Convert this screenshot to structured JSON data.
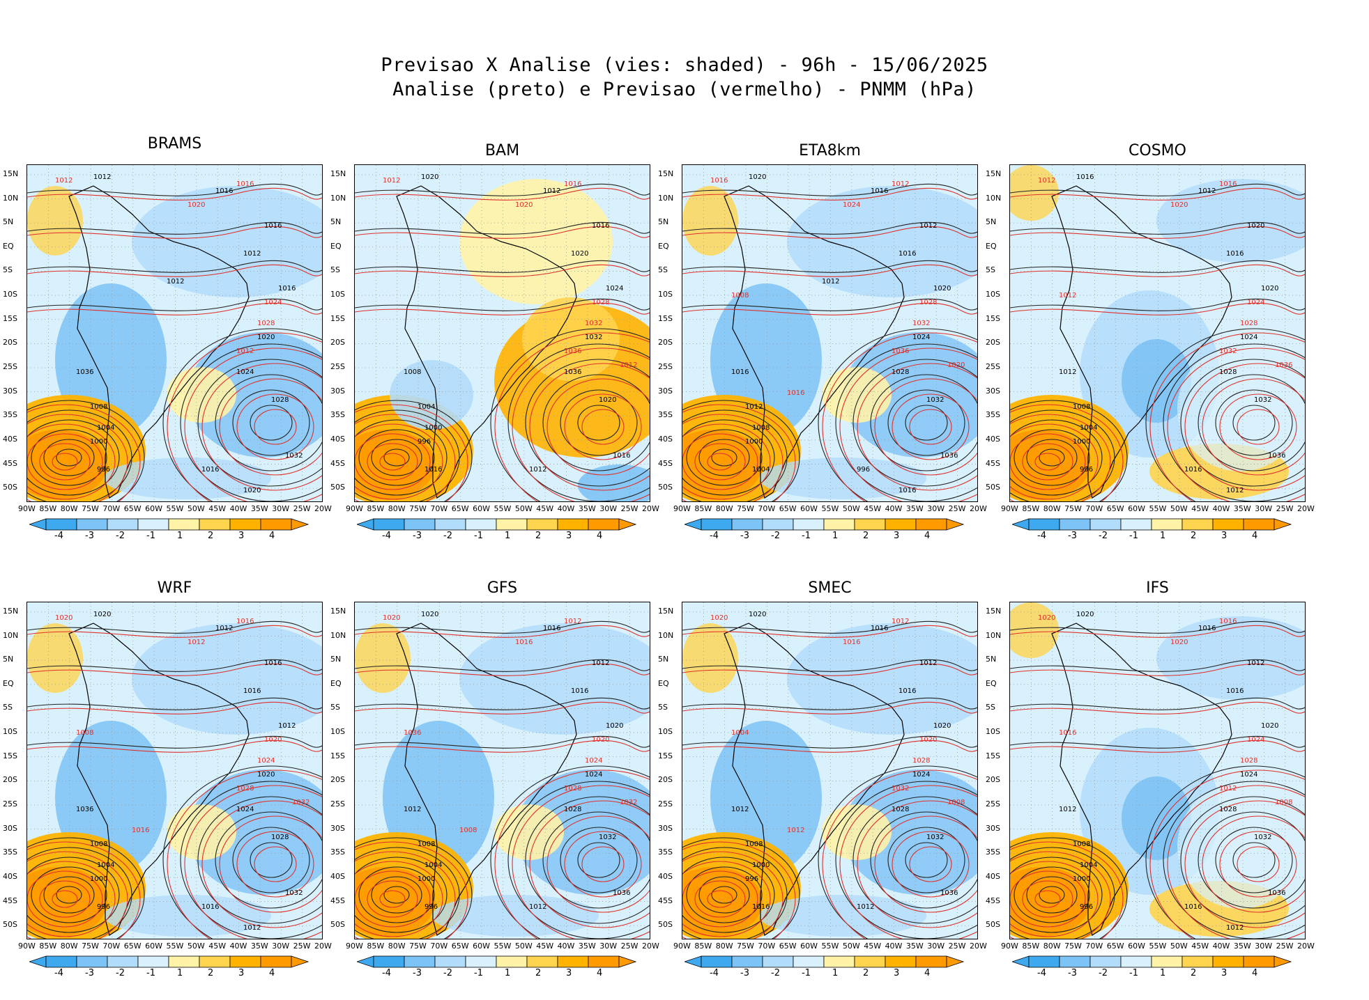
{
  "title_line1": "Previsao X Analise (vies: shaded) - 96h - 15/06/2025",
  "title_line2": "Analise (preto) e Previsao (vermelho) - PNMM (hPa)",
  "lat_labels": [
    "15N",
    "10N",
    "5N",
    "EQ",
    "5S",
    "10S",
    "15S",
    "20S",
    "25S",
    "30S",
    "35S",
    "40S",
    "45S",
    "50S"
  ],
  "lon_labels": [
    "90W",
    "85W",
    "80W",
    "75W",
    "70W",
    "65W",
    "60W",
    "55W",
    "50W",
    "45W",
    "40W",
    "35W",
    "30W",
    "25W",
    "20W"
  ],
  "colorbar": {
    "ticks": [
      "-4",
      "-3",
      "-2",
      "-1",
      "1",
      "2",
      "3",
      "4"
    ],
    "colors": [
      "#3fa9f0",
      "#7dc3f5",
      "#b1dcfa",
      "#d9f1fc",
      "#ffffff",
      "#fff3a8",
      "#ffd44f",
      "#ffb300",
      "#ff9a00"
    ]
  },
  "panels": [
    {
      "model": "BRAMS",
      "isobars_analysis": [
        "1012",
        "1016",
        "1016",
        "1012",
        "1016",
        "1020",
        "1024",
        "1028",
        "1032",
        "1036",
        "1008",
        "1004",
        "1000",
        "996",
        "1016",
        "1020",
        "1012"
      ],
      "isobars_forecast": [
        "1012",
        "1016",
        "1020",
        "1024",
        "1028",
        "1012"
      ],
      "bias_pattern": "cold"
    },
    {
      "model": "BAM",
      "isobars_analysis": [
        "1020",
        "1012",
        "1016",
        "1020",
        "1024",
        "1032",
        "1036",
        "1020",
        "1016",
        "1008",
        "1004",
        "1000",
        "996",
        "1016",
        "1012"
      ],
      "isobars_forecast": [
        "1012",
        "1016",
        "1020",
        "1028",
        "1032",
        "1036",
        "1012"
      ],
      "bias_pattern": "warm"
    },
    {
      "model": "ETA8km",
      "isobars_analysis": [
        "1020",
        "1016",
        "1012",
        "1016",
        "1020",
        "1024",
        "1028",
        "1032",
        "1036",
        "1016",
        "1012",
        "1008",
        "1000",
        "1004",
        "996",
        "1016",
        "1012"
      ],
      "isobars_forecast": [
        "1016",
        "1012",
        "1024",
        "1028",
        "1032",
        "1036",
        "1020",
        "1008",
        "1016"
      ],
      "bias_pattern": "cold"
    },
    {
      "model": "COSMO",
      "isobars_analysis": [
        "1016",
        "1012",
        "1020",
        "1016",
        "1020",
        "1024",
        "1028",
        "1032",
        "1036",
        "1012",
        "1008",
        "1004",
        "1000",
        "996",
        "1016",
        "1012"
      ],
      "isobars_forecast": [
        "1012",
        "1016",
        "1020",
        "1024",
        "1028",
        "1032",
        "1036",
        "1012"
      ],
      "bias_pattern": "mixed"
    },
    {
      "model": "WRF",
      "isobars_analysis": [
        "1020",
        "1012",
        "1016",
        "1016",
        "1012",
        "1020",
        "1024",
        "1028",
        "1032",
        "1036",
        "1008",
        "1004",
        "1000",
        "996",
        "1016",
        "1012"
      ],
      "isobars_forecast": [
        "1020",
        "1016",
        "1012",
        "1020",
        "1024",
        "1028",
        "1032",
        "1008",
        "1016"
      ],
      "bias_pattern": "cold"
    },
    {
      "model": "GFS",
      "isobars_analysis": [
        "1020",
        "1016",
        "1012",
        "1016",
        "1020",
        "1024",
        "1028",
        "1032",
        "1036",
        "1012",
        "1008",
        "1004",
        "1000",
        "996",
        "1012"
      ],
      "isobars_forecast": [
        "1020",
        "1012",
        "1016",
        "1020",
        "1024",
        "1028",
        "1032",
        "1036",
        "1008"
      ],
      "bias_pattern": "cold"
    },
    {
      "model": "SMEC",
      "isobars_analysis": [
        "1020",
        "1016",
        "1012",
        "1016",
        "1020",
        "1024",
        "1028",
        "1032",
        "1036",
        "1012",
        "1008",
        "1000",
        "996",
        "1016",
        "1012"
      ],
      "isobars_forecast": [
        "1020",
        "1012",
        "1016",
        "1020",
        "1028",
        "1032",
        "1008",
        "1004",
        "1012"
      ],
      "bias_pattern": "cold"
    },
    {
      "model": "IFS",
      "isobars_analysis": [
        "1020",
        "1016",
        "1012",
        "1016",
        "1020",
        "1024",
        "1028",
        "1032",
        "1036",
        "1012",
        "1008",
        "1004",
        "1000",
        "996",
        "1016",
        "1012"
      ],
      "isobars_forecast": [
        "1020",
        "1016",
        "1020",
        "1024",
        "1028",
        "1012",
        "1008",
        "1016"
      ],
      "bias_pattern": "mixed"
    }
  ]
}
